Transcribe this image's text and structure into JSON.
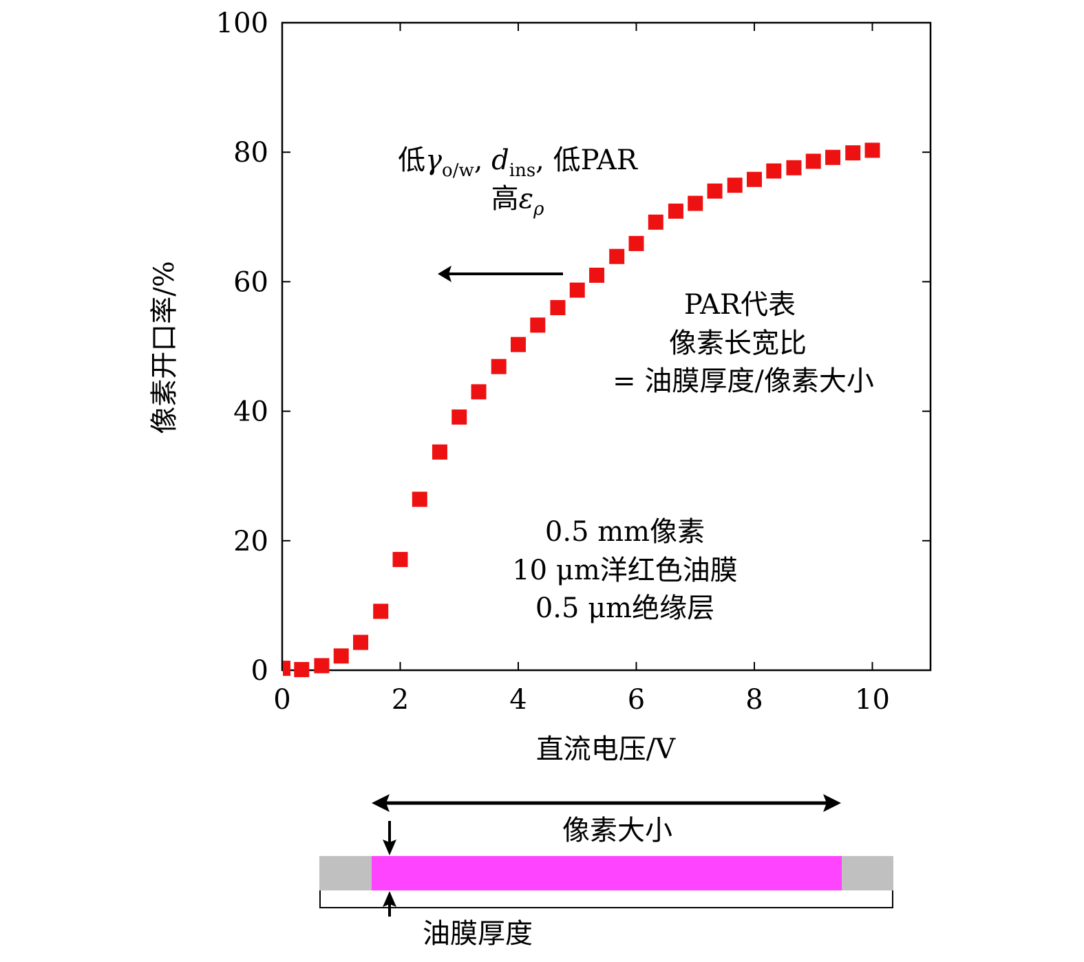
{
  "chart_data": {
    "type": "scatter",
    "xlabel": "直流电压/V",
    "ylabel": "像素开口率/%",
    "xlim": [
      0,
      11
    ],
    "ylim": [
      0,
      100
    ],
    "xticks": [
      0,
      2,
      4,
      6,
      8,
      10
    ],
    "yticks": [
      0,
      20,
      40,
      60,
      80,
      100
    ],
    "grid": false,
    "marker": "square",
    "marker_color": "#ee1111",
    "series": [
      {
        "x": [
          0,
          0.33,
          0.67,
          1.0,
          1.33,
          1.67,
          2.0,
          2.33,
          2.67,
          3.0,
          3.33,
          3.67,
          4.0,
          4.33,
          4.67,
          5.0,
          5.33,
          5.67,
          6.0,
          6.33,
          6.67,
          7.0,
          7.33,
          7.67,
          8.0,
          8.33,
          8.67,
          9.0,
          9.33,
          9.67,
          10.0
        ],
        "y": [
          0.3,
          0.1,
          0.7,
          2.2,
          4.3,
          9.1,
          17.1,
          26.4,
          33.7,
          39.1,
          43.0,
          46.9,
          50.3,
          53.3,
          56.0,
          58.7,
          61.0,
          63.9,
          65.9,
          69.2,
          70.9,
          72.1,
          74.0,
          74.9,
          75.8,
          77.1,
          77.6,
          78.6,
          79.2,
          79.9,
          80.3
        ]
      }
    ],
    "annotations": {
      "arrow_note": {
        "line1_a": "低",
        "line1_gamma": "γ",
        "line1_gamma_sub": "o/w",
        "line1_b": ", ",
        "line1_d": "d",
        "line1_d_sub": "ins",
        "line1_c": ", 低PAR",
        "line2_a": "高",
        "line2_eps": "ε",
        "line2_eps_sub": "ρ"
      },
      "par_note": [
        "PAR代表",
        "像素长宽比",
        "= 油膜厚度/像素大小"
      ],
      "setup_note": [
        "0.5 mm像素",
        "10 μm洋红色油膜",
        "0.5 μm绝缘层"
      ]
    }
  },
  "diagram": {
    "pixel_size_label": "像素大小",
    "oil_thickness_label": "油膜厚度",
    "oil_color": "#ff44ff",
    "wall_color": "#c0c0c0"
  }
}
